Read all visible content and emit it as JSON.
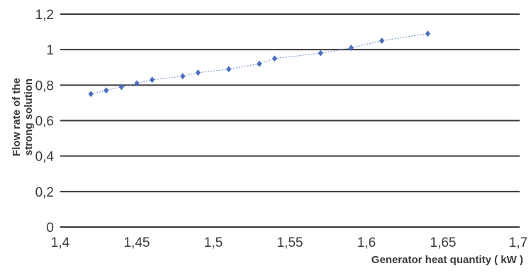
{
  "chart_data": {
    "type": "scatter",
    "title": "",
    "xlabel": "Generator heat quantity ( kW )",
    "ylabel": [
      "Flow rate of the",
      "strong solution"
    ],
    "xlim": [
      1.4,
      1.7
    ],
    "ylim": [
      0,
      1.2
    ],
    "x_ticks": [
      "1,4",
      "1,45",
      "1,5",
      "1,55",
      "1,6",
      "1,65",
      "1,7"
    ],
    "y_ticks": [
      "0",
      "0,2",
      "0,4",
      "0,6",
      "0,8",
      "1",
      "1,2"
    ],
    "grid": "horizontal",
    "legend": "none",
    "colors": {
      "marker": "#4a6fbf",
      "line": "#6b8cc9",
      "grid": "#3a3a3a"
    },
    "series": [
      {
        "marker": "diamond",
        "line": "dotted",
        "x": [
          1.42,
          1.43,
          1.44,
          1.45,
          1.46,
          1.48,
          1.49,
          1.51,
          1.53,
          1.54,
          1.57,
          1.59,
          1.61,
          1.64
        ],
        "y": [
          0.75,
          0.77,
          0.79,
          0.81,
          0.83,
          0.85,
          0.87,
          0.89,
          0.92,
          0.95,
          0.98,
          1.01,
          1.05,
          1.09
        ]
      }
    ]
  }
}
